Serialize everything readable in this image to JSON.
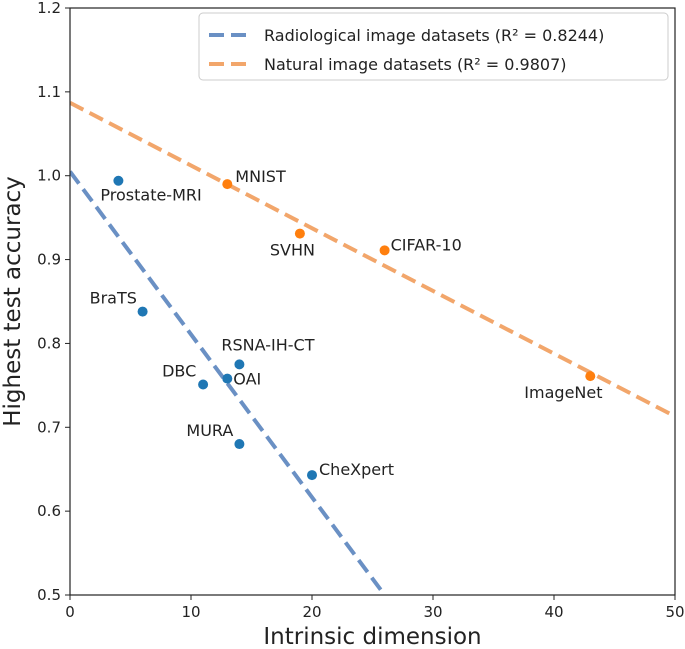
{
  "chart_data": {
    "type": "scatter",
    "xlabel": "Intrinsic dimension",
    "ylabel": "Highest test accuracy",
    "xlim": [
      0,
      50
    ],
    "ylim": [
      0.5,
      1.2
    ],
    "xticks": [
      "0",
      "10",
      "20",
      "30",
      "40",
      "50"
    ],
    "yticks": [
      "0.5",
      "0.6",
      "0.7",
      "0.8",
      "0.9",
      "1.0",
      "1.1",
      "1.2"
    ],
    "grid": false,
    "legend_position": "top-right",
    "series": [
      {
        "name": "Radiological image datasets",
        "legend_label": "Radiological image datasets (R² = 0.8244)",
        "color": "#1f77b4",
        "line_color": "#6a90c4",
        "r2": "0.8244",
        "fit": [
          [
            0,
            1.005
          ],
          [
            26,
            0.5
          ]
        ],
        "points": [
          {
            "label": "Prostate-MRI",
            "x": 4,
            "y": 0.994
          },
          {
            "label": "BraTS",
            "x": 6,
            "y": 0.838
          },
          {
            "label": "DBC",
            "x": 11,
            "y": 0.751
          },
          {
            "label": "OAI",
            "x": 13,
            "y": 0.758
          },
          {
            "label": "RSNA-IH-CT",
            "x": 14,
            "y": 0.775
          },
          {
            "label": "MURA",
            "x": 14,
            "y": 0.68
          },
          {
            "label": "CheXpert",
            "x": 20,
            "y": 0.643
          }
        ]
      },
      {
        "name": "Natural image datasets",
        "legend_label": "Natural image datasets (R² = 0.9807)",
        "color": "#ff7f0e",
        "line_color": "#f2a66b",
        "r2": "0.9807",
        "fit": [
          [
            0,
            1.087
          ],
          [
            50,
            0.713
          ]
        ],
        "points": [
          {
            "label": "MNIST",
            "x": 13,
            "y": 0.99
          },
          {
            "label": "SVHN",
            "x": 19,
            "y": 0.931
          },
          {
            "label": "CIFAR-10",
            "x": 26,
            "y": 0.911
          },
          {
            "label": "ImageNet",
            "x": 43,
            "y": 0.761
          }
        ]
      }
    ]
  }
}
